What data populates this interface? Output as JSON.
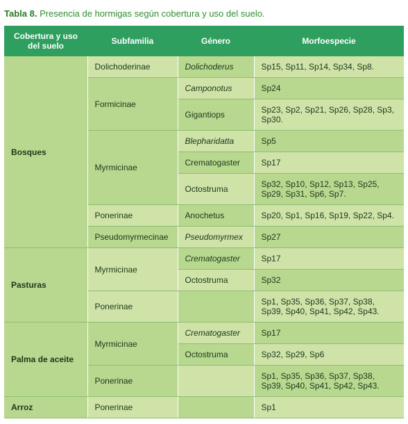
{
  "caption_label": "Tabla 8.",
  "caption_text": "Presencia de hormigas según cobertura y uso del suelo.",
  "headers": {
    "cobertura": "Cobertura y uso del suelo",
    "subfamilia": "Subfamilia",
    "genero": "Género",
    "morfoespecie": "Morfoespecie"
  },
  "colors": {
    "header_bg": "#2f9f5f",
    "header_fg": "#ffffff",
    "shade_a": "#cfe2a8",
    "shade_b": "#b8d78f",
    "border": "#8fbf6f",
    "caption": "#2f8f2f"
  },
  "groups": [
    {
      "cobertura": "Bosques",
      "rows": [
        {
          "subfamilia": "Dolichoderinae",
          "sub_span": 1,
          "genero": "Dolichoderus",
          "gen_italic": true,
          "morfo": "Sp15, Sp11, Sp14, Sp34, Sp8."
        },
        {
          "subfamilia": "Formicinae",
          "sub_span": 2,
          "genero": "Camponotus",
          "gen_italic": true,
          "morfo": "Sp24"
        },
        {
          "subfamilia": null,
          "sub_span": 0,
          "genero": "Gigantiops",
          "gen_italic": false,
          "morfo": "Sp23, Sp2, Sp21, Sp26, Sp28, Sp3, Sp30."
        },
        {
          "subfamilia": "Myrmicinae",
          "sub_span": 3,
          "genero": "Blepharidatta",
          "gen_italic": true,
          "morfo": "Sp5"
        },
        {
          "subfamilia": null,
          "sub_span": 0,
          "genero": "Crematogaster",
          "gen_italic": false,
          "morfo": "Sp17"
        },
        {
          "subfamilia": null,
          "sub_span": 0,
          "genero": "Octostruma",
          "gen_italic": false,
          "morfo": "Sp32, Sp10, Sp12, Sp13, Sp25, Sp29, Sp31, Sp6, Sp7."
        },
        {
          "subfamilia": "Ponerinae",
          "sub_span": 1,
          "genero": "Anochetus",
          "gen_italic": false,
          "morfo": "Sp20, Sp1, Sp16, Sp19, Sp22, Sp4."
        },
        {
          "subfamilia": "Pseudomyrmecinae",
          "sub_span": 1,
          "genero": "Pseudomyrmex",
          "gen_italic": true,
          "morfo": "Sp27"
        }
      ]
    },
    {
      "cobertura": "Pasturas",
      "rows": [
        {
          "subfamilia": "Myrmicinae",
          "sub_span": 2,
          "genero": "Crematogaster",
          "gen_italic": true,
          "morfo": "Sp17"
        },
        {
          "subfamilia": null,
          "sub_span": 0,
          "genero": "Octostruma",
          "gen_italic": false,
          "morfo": "Sp32"
        },
        {
          "subfamilia": "Ponerinae",
          "sub_span": 1,
          "genero": "",
          "gen_italic": false,
          "morfo": "Sp1, Sp35, Sp36, Sp37, Sp38, Sp39, Sp40, Sp41, Sp42, Sp43."
        }
      ]
    },
    {
      "cobertura": "Palma de aceite",
      "rows": [
        {
          "subfamilia": "Myrmicinae",
          "sub_span": 2,
          "genero": "Crematogaster",
          "gen_italic": true,
          "morfo": "Sp17"
        },
        {
          "subfamilia": null,
          "sub_span": 0,
          "genero": "Octostruma",
          "gen_italic": false,
          "morfo": "Sp32, Sp29, Sp6"
        },
        {
          "subfamilia": "Ponerinae",
          "sub_span": 1,
          "genero": "",
          "gen_italic": false,
          "morfo": "Sp1, Sp35, Sp36, Sp37, Sp38, Sp39, Sp40, Sp41, Sp42, Sp43."
        }
      ]
    },
    {
      "cobertura": "Arroz",
      "rows": [
        {
          "subfamilia": "Ponerinae",
          "sub_span": 1,
          "genero": "",
          "gen_italic": false,
          "morfo": "Sp1"
        }
      ]
    }
  ]
}
